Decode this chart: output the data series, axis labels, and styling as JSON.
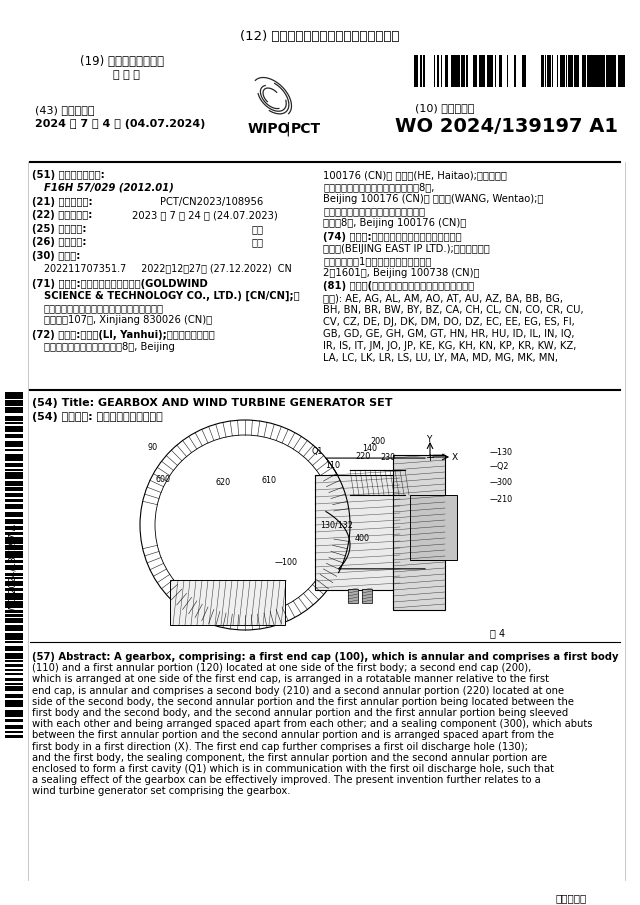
{
  "bg_color": "#ffffff",
  "title_line": "(12) 按照专利合作条约所公布的国际申请",
  "line19": "(19) 世界知识产权组织",
  "line19b": "国 际 局",
  "line43": "(43) 国际公布日",
  "line43b": "2024 年 7 月 4 日 (04.07.2024)",
  "line10": "(10) 国际公布号",
  "pub_number": "WO 2024/139197 A1",
  "line51a": "(51) 国际专利分类号:",
  "line51b": "F16H 57/029 (2012.01)",
  "line21a": "(21) 国际申请号:",
  "line21b": "PCT/CN2023/108956",
  "line22a": "(22) 国际申请日:",
  "line22b": "2023 年 7 月 24 日 (24.07.2023)",
  "line25a": "(25) 申请语言:",
  "line25b": "中文",
  "line26a": "(26) 公布语言:",
  "line26b": "中文",
  "line30a": "(30) 优先权:",
  "line30b": "202211707351.7     2022年12月27日 (27.12.2022)  CN",
  "line71_1": "(71) 申请人:金风科技股份有限公司(GOLDWIND",
  "line71_2": "SCIENCE & TECHNOLOGY CO., LTD.) [CN/CN];中",
  "line71_3": "国新疆维吾尔自治区乌鲁木齐市经济技术开发",
  "line71_4": "区上海路107号, Xinjiang 830026 (CN)。",
  "line72_1": "(72) 发明人:李延慥(LI, Yanhui);中国北京市大兴区",
  "line72_2": "北京经济技术开发区博兴一路8号, Beijing",
  "rc_1": "100176 (CN)。 何海涛(HE, Haitao);中国北京市",
  "rc_2": "大兴区北京经济技术开发区博兴一路8号,",
  "rc_3": "Beijing 100176 (CN)。 汪文涛(WANG, Wentao);中",
  "rc_4": "国北京市大兴区北京经济技术开发区博",
  "rc_5": "兴一路8号, Beijing 100176 (CN)。",
  "rc_74_1": "(74) 代理人:北京东方亿思知识产权代理有限责",
  "rc_74_2": "任公司(BEIJING EAST IP LTD.);中国北京市东",
  "rc_74_3": "城区东长安街1号东方广场东方经贸城东",
  "rc_74_4": "2座1601室, Beijing 100738 (CN)。",
  "rc_81_0": "(81) 指定国(除另有指明，要求每一种可提供的国家",
  "rc_81_1": "保护): AE, AG, AL, AM, AO, AT, AU, AZ, BA, BB, BG,",
  "rc_81_2": "BH, BN, BR, BW, BY, BZ, CA, CH, CL, CN, CO, CR, CU,",
  "rc_81_3": "CV, CZ, DE, DJ, DK, DM, DO, DZ, EC, EE, EG, ES, FI,",
  "rc_81_4": "GB, GD, GE, GH, GM, GT, HN, HR, HU, ID, IL, IN, IQ,",
  "rc_81_5": "IR, IS, IT, JM, JO, JP, KE, KG, KH, KN, KP, KR, KW, KZ,",
  "rc_81_6": "LA, LC, LK, LR, LS, LU, LY, MA, MD, MG, MK, MN,",
  "title54_en": "(54) Title: GEARBOX AND WIND TURBINE GENERATOR SET",
  "title54_cn": "(54) 发明名称: 齿轮筱及风力发电机组",
  "abstract57": "(57) Abstract: A gearbox, comprising: a first end cap (100), which is annular and comprises a first body (110) and a first annular portion (120) located at one side of the first body; a second end cap (200), which is arranged at one side of the first end cap, is arranged in a rotatable manner relative to the first end cap, is annular and comprises a second body (210) and a second annular portion (220) located at one side of the second body, the second annular portion and the first annular portion being located between the first body and the second body, and the second annular portion and the first annular portion being sleeved with each other and being arranged spaced apart from each other; and a sealing component (300), which abuts between the first annular portion and the second annular portion and is arranged spaced apart from the first body in a first direction (X). The first end cap further comprises a first oil discharge hole (130); and the first body, the sealing component, the first annular portion and the second annular portion are enclosed to form a first cavity (Q1) which is in communication with the first oil discharge hole, such that a sealing effect of the gearbox can be effectively improved. The present invention further relates to a wind turbine generator set comprising the gearbox.",
  "footer": "》见续页《",
  "fig_label": "图 4",
  "wo_vertical": "WO 2024/139197 A1"
}
